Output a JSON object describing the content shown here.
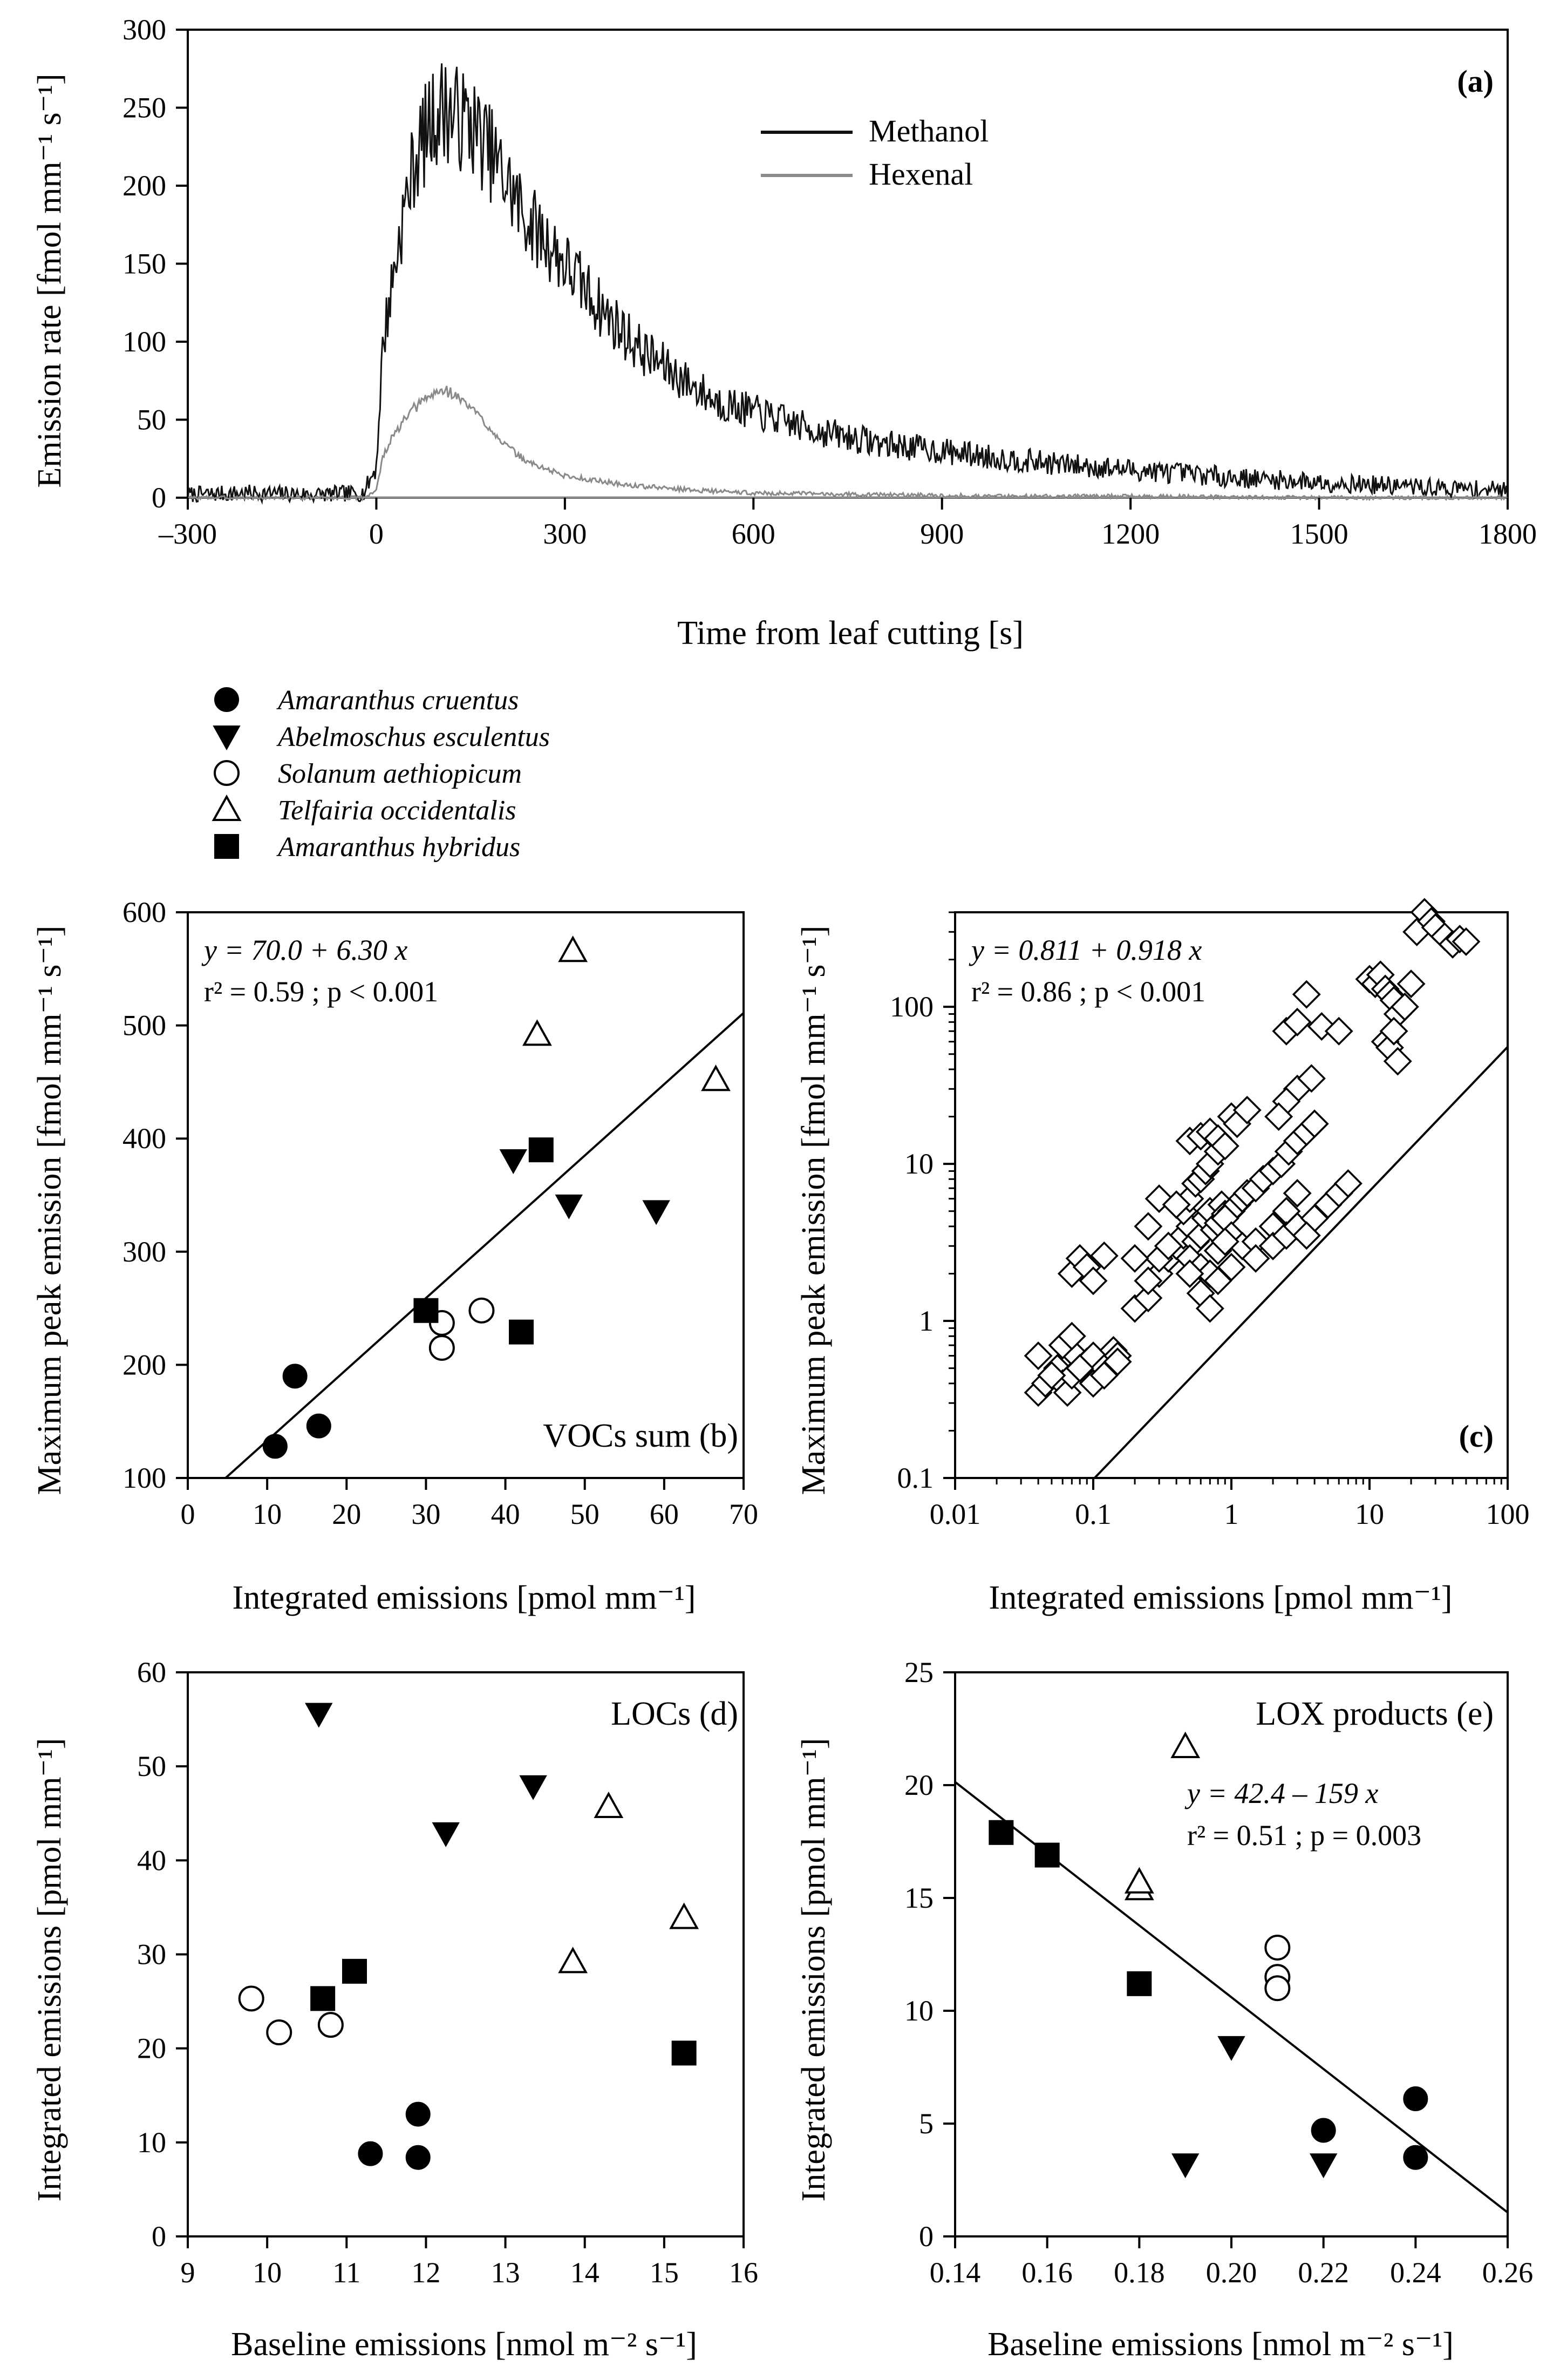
{
  "species_legend": [
    {
      "name": "Amaranthus cruentus",
      "marker": "circle-filled"
    },
    {
      "name": "Abelmoschus esculentus",
      "marker": "triangle-down-filled"
    },
    {
      "name": "Solanum aethiopicum",
      "marker": "circle-open"
    },
    {
      "name": "Telfairia occidentalis",
      "marker": "triangle-up-open"
    },
    {
      "name": "Amaranthus hybridus",
      "marker": "square-filled"
    }
  ],
  "colors": {
    "methanol": "#111111",
    "hexenal": "#8a8a8a",
    "ink": "#000000",
    "paper": "#ffffff"
  },
  "chart_data": [
    {
      "id": "a",
      "type": "line",
      "panel_label": "(a)",
      "xlabel": "Time from leaf cutting [s]",
      "ylabel": "Emission rate [fmol mm⁻¹ s⁻¹]",
      "xlim": [
        -300,
        1800
      ],
      "ylim": [
        0,
        300
      ],
      "xticks": [
        -300,
        0,
        300,
        600,
        900,
        1200,
        1500,
        1800
      ],
      "xtick_labels": [
        "–300",
        "0",
        "300",
        "600",
        "900",
        "1200",
        "1500",
        "1800"
      ],
      "yticks": [
        0,
        50,
        100,
        150,
        200,
        250,
        300
      ],
      "legend": [
        "Methanol",
        "Hexenal"
      ],
      "series": [
        {
          "name": "Methanol",
          "x": [
            -300,
            -200,
            -100,
            -20,
            0,
            10,
            20,
            40,
            60,
            80,
            100,
            110,
            120,
            150,
            180,
            210,
            240,
            270,
            300,
            360,
            420,
            480,
            540,
            600,
            700,
            800,
            900,
            1000,
            1100,
            1200,
            1300,
            1400,
            1500,
            1600,
            1700,
            1800
          ],
          "y": [
            2,
            3,
            2,
            3,
            20,
            95,
            125,
            175,
            215,
            235,
            248,
            250,
            245,
            240,
            222,
            200,
            178,
            165,
            150,
            120,
            95,
            78,
            62,
            55,
            43,
            35,
            30,
            25,
            21,
            18,
            15,
            12,
            10,
            8,
            6,
            5
          ]
        },
        {
          "name": "Hexenal",
          "x": [
            -300,
            -20,
            0,
            10,
            20,
            40,
            60,
            80,
            100,
            110,
            120,
            150,
            180,
            210,
            240,
            300,
            400,
            500,
            600,
            800,
            1000,
            1200,
            1500,
            1800
          ],
          "y": [
            0,
            0,
            5,
            25,
            35,
            47,
            57,
            64,
            68,
            69,
            67,
            58,
            45,
            32,
            23,
            14,
            8,
            5,
            3,
            2,
            1,
            1,
            0,
            0
          ]
        }
      ]
    },
    {
      "id": "b",
      "type": "scatter",
      "panel_label": "VOCs sum (b)",
      "xlabel": "Integrated emissions [pmol mm⁻¹]",
      "ylabel": "Maximum peak emission [fmol mm⁻¹ s⁻¹]",
      "xlim": [
        0,
        70
      ],
      "ylim": [
        100,
        600
      ],
      "xticks": [
        0,
        10,
        20,
        30,
        40,
        50,
        60,
        70
      ],
      "yticks": [
        100,
        200,
        300,
        400,
        500,
        600
      ],
      "regression": {
        "equation": "y = 70.0 + 6.30 x",
        "stats": "r² = 0.59 ; p < 0.001",
        "intercept": 70.0,
        "slope": 6.3
      },
      "series": [
        {
          "name": "Amaranthus cruentus",
          "x": [
            11.0,
            13.5,
            16.5
          ],
          "y": [
            128,
            190,
            146
          ]
        },
        {
          "name": "Abelmoschus esculentus",
          "x": [
            41.0,
            48.0,
            59.0
          ],
          "y": [
            381,
            341,
            336
          ]
        },
        {
          "name": "Solanum aethiopicum",
          "x": [
            32.0,
            32.0,
            37.0
          ],
          "y": [
            237,
            215,
            248
          ]
        },
        {
          "name": "Telfairia occidentalis",
          "x": [
            44.0,
            48.5,
            66.5
          ],
          "y": [
            492,
            566,
            452
          ]
        },
        {
          "name": "Amaranthus hybridus",
          "x": [
            30.0,
            42.0,
            44.5
          ],
          "y": [
            248,
            229,
            390
          ]
        }
      ]
    },
    {
      "id": "c",
      "type": "scatter",
      "scale": "log-log",
      "panel_label": "(c)",
      "xlabel": "Integrated emissions [pmol mm⁻¹]",
      "ylabel": "Maximum peak emission [fmol mm⁻¹ s⁻¹]",
      "xlim": [
        0.01,
        100
      ],
      "ylim": [
        0.1,
        400
      ],
      "xticks": [
        0.01,
        0.1,
        1,
        10,
        100
      ],
      "xtick_labels": [
        "0.01",
        "0.1",
        "1",
        "10",
        "100"
      ],
      "yticks": [
        0.1,
        1,
        10,
        100
      ],
      "ytick_labels": [
        "0.1",
        "1",
        "10",
        "100"
      ],
      "regression": {
        "equation": "y = 0.811 + 0.918 x",
        "stats": "r² = 0.86 ; p < 0.001",
        "log_intercept": 0.811,
        "slope": 0.918
      },
      "series": [
        {
          "name": "VOC compounds",
          "marker": "diamond-open",
          "x": [
            0.04,
            0.045,
            0.05,
            0.055,
            0.06,
            0.065,
            0.07,
            0.075,
            0.08,
            0.09,
            0.1,
            0.12,
            0.14,
            0.15,
            0.04,
            0.05,
            0.06,
            0.07,
            0.08,
            0.1,
            0.12,
            0.15,
            0.2,
            0.25,
            0.3,
            0.35,
            0.4,
            0.45,
            0.5,
            0.55,
            0.6,
            0.65,
            0.7,
            0.75,
            0.8,
            0.85,
            0.9,
            1.0,
            1.1,
            1.2,
            1.3,
            1.5,
            1.7,
            2.0,
            2.3,
            2.6,
            3.0,
            3.5,
            4.0,
            0.45,
            0.5,
            0.55,
            0.6,
            0.65,
            0.7,
            0.8,
            0.9,
            1.0,
            1.2,
            1.5,
            2.0,
            2.5,
            3.0,
            0.5,
            0.6,
            0.7,
            0.8,
            0.9,
            1.0,
            1.1,
            1.3,
            0.5,
            0.6,
            0.7,
            0.8,
            0.9,
            0.25,
            0.3,
            0.35,
            0.2,
            0.25,
            0.5,
            0.6,
            0.7,
            0.8,
            1.0,
            1.5,
            2.0,
            2.5,
            3.0,
            4.0,
            5.0,
            6.0,
            7.0,
            2.5,
            3.0,
            3.5,
            4.5,
            6.0,
            10,
            11,
            12,
            13,
            14,
            15,
            16,
            18,
            20,
            22,
            25,
            28,
            30,
            35,
            40,
            45,
            50,
            13,
            14,
            15,
            16,
            0.07,
            0.08,
            0.09,
            0.1,
            0.12,
            0.3,
            0.4,
            3.5,
            3.0,
            2.5,
            2.2,
            4.0,
            3.8
          ],
          "y": [
            0.35,
            0.4,
            0.45,
            0.5,
            0.4,
            0.35,
            0.45,
            0.6,
            0.5,
            0.55,
            0.6,
            0.5,
            0.65,
            0.6,
            0.6,
            0.45,
            0.7,
            0.8,
            0.5,
            0.4,
            0.45,
            0.55,
            1.2,
            1.4,
            2.0,
            2.5,
            3.0,
            3.5,
            4.0,
            3.2,
            3.5,
            4.5,
            5.0,
            3.8,
            4.2,
            5.5,
            4.8,
            5.0,
            5.5,
            6.0,
            6.5,
            7.0,
            8.0,
            9.0,
            10.0,
            12.0,
            14.0,
            16.0,
            18.0,
            5.0,
            6.0,
            7.5,
            8.0,
            9.0,
            10.0,
            12.0,
            4.5,
            3.5,
            3.0,
            3.2,
            4.0,
            5.0,
            6.5,
            14.0,
            15.0,
            16.0,
            14.5,
            13.0,
            20.0,
            18.0,
            22.0,
            2.5,
            2.2,
            2.0,
            2.8,
            3.2,
            1.8,
            2.5,
            3.0,
            2.5,
            4.0,
            2.0,
            1.5,
            1.2,
            1.8,
            2.2,
            2.5,
            3.0,
            3.5,
            4.0,
            4.5,
            5.5,
            6.5,
            7.5,
            70.0,
            80.0,
            120.0,
            75.0,
            70.0,
            150.0,
            140.0,
            160.0,
            130.0,
            120.0,
            110.0,
            90.0,
            100.0,
            140.0,
            300.0,
            400.0,
            350.0,
            320.0,
            280.0,
            250.0,
            270.0,
            260.0,
            60.0,
            55.0,
            70.0,
            45.0,
            2.0,
            2.5,
            2.2,
            1.8,
            2.6,
            6.0,
            5.5,
            3.5,
            30.0,
            25.0,
            20.0,
            18.0,
            35.0
          ]
        }
      ]
    },
    {
      "id": "d",
      "type": "scatter",
      "panel_label": "LOCs (d)",
      "xlabel": "Baseline emissions [nmol m⁻² s⁻¹]",
      "ylabel": "Integrated emissions [pmol mm⁻¹]",
      "xlim": [
        9,
        16
      ],
      "ylim": [
        0,
        60
      ],
      "xticks": [
        9,
        10,
        11,
        12,
        13,
        14,
        15,
        16
      ],
      "yticks": [
        0,
        10,
        20,
        30,
        40,
        50,
        60
      ],
      "series": [
        {
          "name": "Amaranthus cruentus",
          "x": [
            11.3,
            11.9,
            11.9
          ],
          "y": [
            8.8,
            8.4,
            13.0
          ]
        },
        {
          "name": "Abelmoschus esculentus",
          "x": [
            10.65,
            12.25,
            13.35
          ],
          "y": [
            55.6,
            42.9,
            47.9
          ]
        },
        {
          "name": "Solanum aethiopicum",
          "x": [
            9.8,
            10.15,
            10.8
          ],
          "y": [
            25.3,
            21.7,
            22.5
          ]
        },
        {
          "name": "Telfairia occidentalis",
          "x": [
            13.85,
            14.3,
            15.25
          ],
          "y": [
            29.2,
            45.7,
            33.9
          ]
        },
        {
          "name": "Amaranthus hybridus",
          "x": [
            10.7,
            11.1,
            15.25
          ],
          "y": [
            25.3,
            28.2,
            19.5
          ]
        }
      ]
    },
    {
      "id": "e",
      "type": "scatter",
      "panel_label": "LOX products (e)",
      "xlabel": "Baseline emissions [nmol m⁻² s⁻¹]",
      "ylabel": "Integrated emissions [pmol mm⁻¹]",
      "xlim": [
        0.14,
        0.26
      ],
      "ylim": [
        0,
        25
      ],
      "xticks": [
        0.14,
        0.16,
        0.18,
        0.2,
        0.22,
        0.24,
        0.26
      ],
      "xtick_labels": [
        "0.14",
        "0.16",
        "0.18",
        "0.20",
        "0.22",
        "0.24",
        "0.26"
      ],
      "yticks": [
        0,
        5,
        10,
        15,
        20,
        25
      ],
      "regression": {
        "equation": "y = 42.4 – 159 x",
        "stats": "r² = 0.51 ; p = 0.003",
        "intercept": 42.4,
        "slope": -159
      },
      "series": [
        {
          "name": "Amaranthus cruentus",
          "x": [
            0.22,
            0.24,
            0.24
          ],
          "y": [
            4.7,
            6.1,
            3.5
          ]
        },
        {
          "name": "Abelmoschus esculentus",
          "x": [
            0.19,
            0.2,
            0.22
          ],
          "y": [
            3.2,
            8.4,
            3.2
          ]
        },
        {
          "name": "Solanum aethiopicum",
          "x": [
            0.21,
            0.21,
            0.21
          ],
          "y": [
            12.8,
            11.5,
            11.0
          ]
        },
        {
          "name": "Telfairia occidentalis",
          "x": [
            0.18,
            0.18,
            0.19
          ],
          "y": [
            15.4,
            15.7,
            21.7
          ]
        },
        {
          "name": "Amaranthus hybridus",
          "x": [
            0.15,
            0.16,
            0.18
          ],
          "y": [
            17.9,
            16.9,
            11.2
          ]
        }
      ]
    }
  ]
}
